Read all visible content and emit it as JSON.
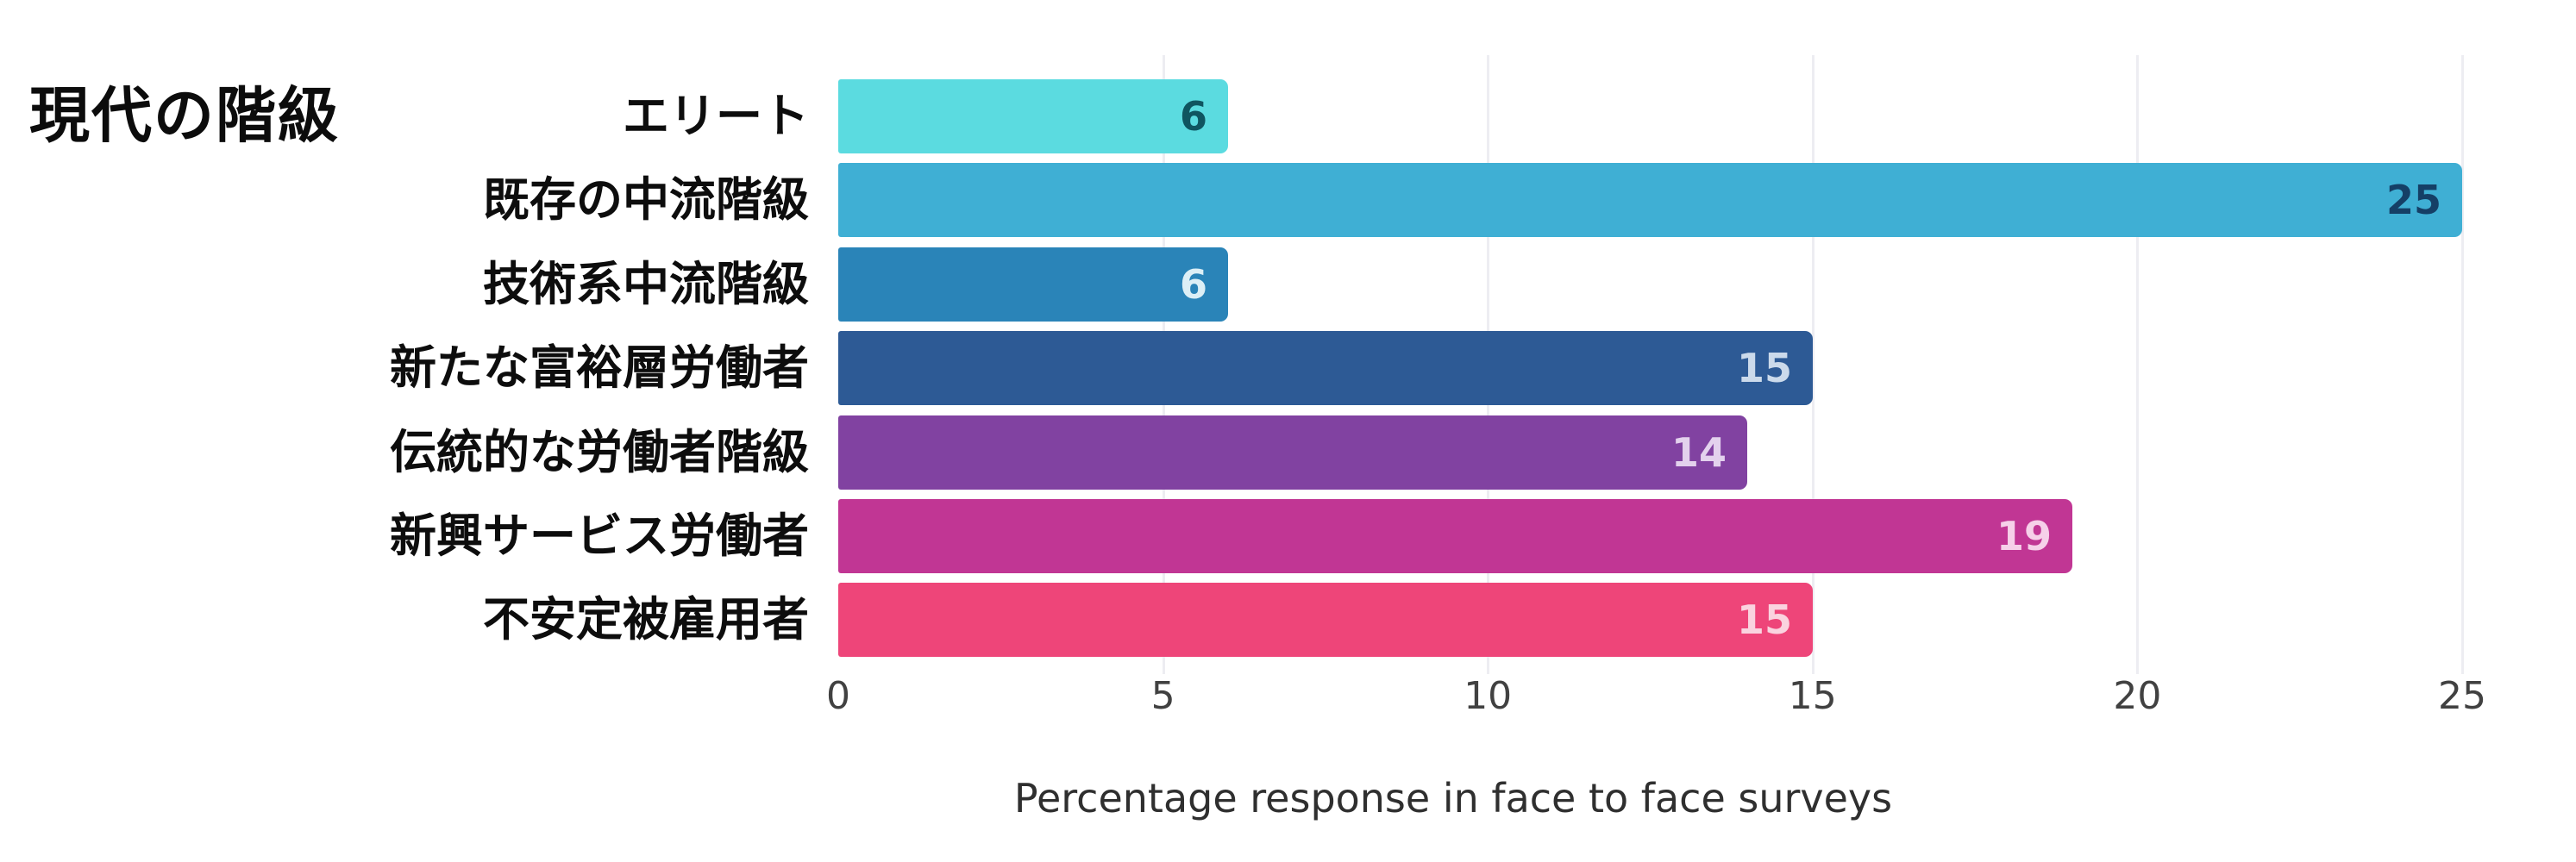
{
  "chart_data": {
    "type": "bar",
    "orientation": "horizontal",
    "title": "現代の階級",
    "xlabel": "Percentage response in face to face surveys",
    "categories": [
      "エリート",
      "既存の中流階級",
      "技術系中流階級",
      "新たな富裕層労働者",
      "伝統的な労働者階級",
      "新興サービス労働者",
      "不安定被雇用者"
    ],
    "values": [
      6,
      25,
      6,
      15,
      14,
      19,
      15
    ],
    "bar_colors": [
      "#5BDBE0",
      "#3FAFD4",
      "#2A84B8",
      "#2D5A95",
      "#8142A1",
      "#C13694",
      "#EE4579"
    ],
    "value_label_colors": [
      "#0F5560",
      "#153F66",
      "#DCEFF6",
      "#CBDAEB",
      "#E3D1ED",
      "#F6D0E9",
      "#FAD3DF"
    ],
    "x_ticks": [
      0,
      5,
      10,
      15,
      20,
      25
    ],
    "xlim": [
      0,
      25
    ],
    "grid": true,
    "gridline_color": "#EDEDF2",
    "tick_label_color": "#414141",
    "legend": "none",
    "background_color": "#FFFFFF"
  }
}
